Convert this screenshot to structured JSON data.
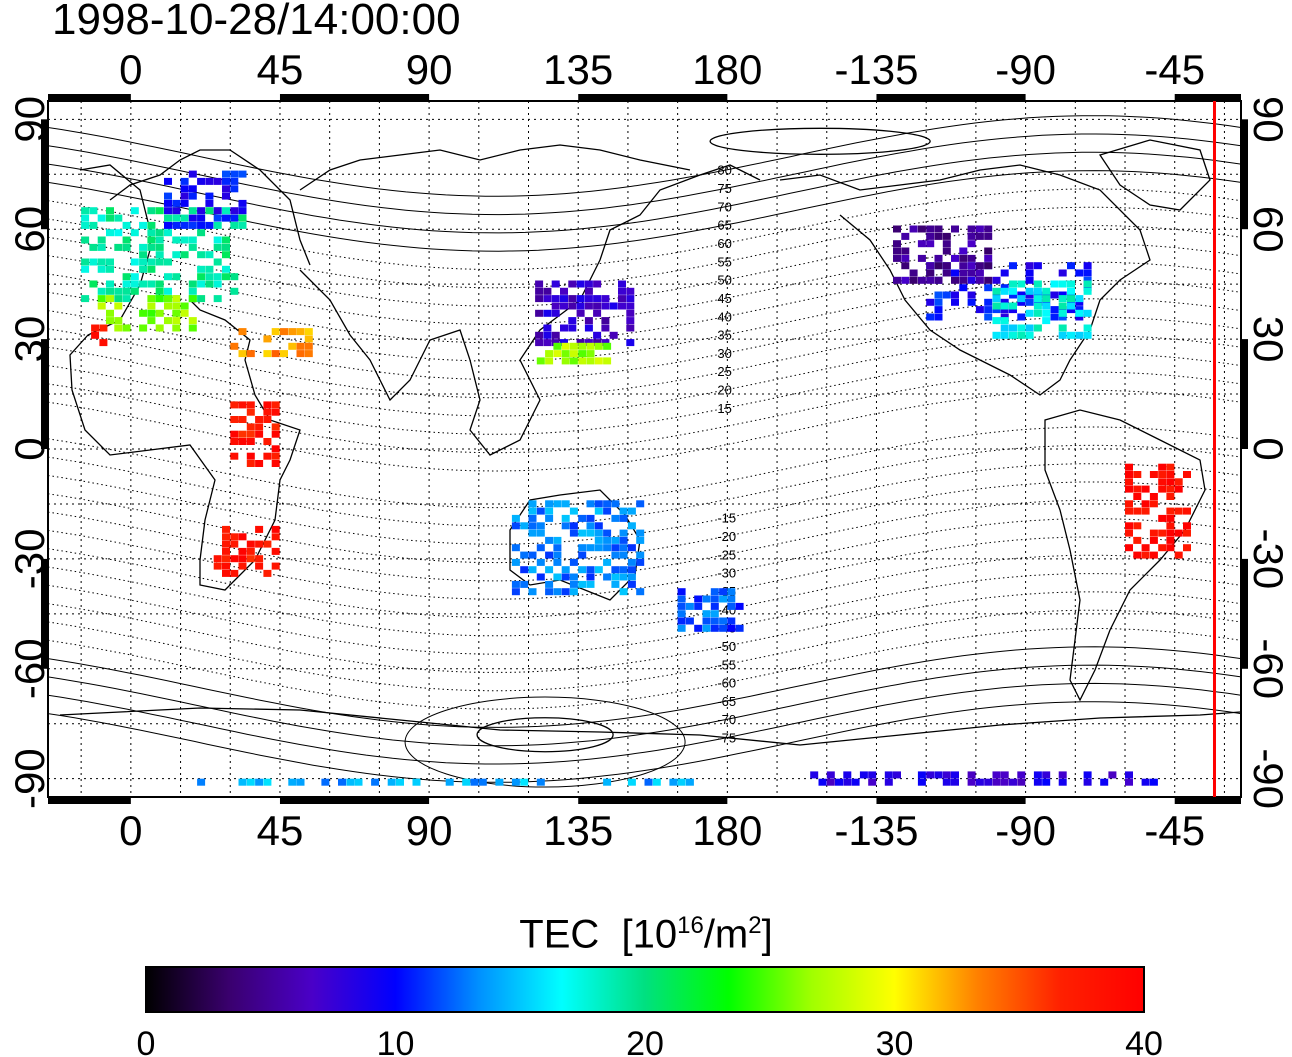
{
  "timestamp": "1998-10-28/14:00:00",
  "map": {
    "x_ticks_top": [
      "0",
      "45",
      "90",
      "135",
      "180",
      "-135",
      "-90",
      "-45"
    ],
    "x_ticks_bottom": [
      "0",
      "45",
      "90",
      "135",
      "180",
      "-135",
      "-90",
      "-45"
    ],
    "y_ticks_left": [
      "90",
      "60",
      "30",
      "0",
      "-30",
      "-60",
      "-90"
    ],
    "y_ticks_right": [
      "90",
      "60",
      "30",
      "0",
      "-30",
      "-60",
      "-90"
    ],
    "lon_tick_values": [
      0,
      45,
      90,
      135,
      180,
      225,
      270,
      315
    ],
    "lat_tick_values": [
      90,
      60,
      30,
      0,
      -30,
      -60,
      -90
    ],
    "lon_range": [
      -25,
      335
    ],
    "lat_range": [
      -95,
      95
    ],
    "grid": "dotted, 15 degree",
    "contour_labels_north": [
      "80",
      "75",
      "70",
      "65",
      "60",
      "55",
      "50",
      "45",
      "40",
      "35",
      "30",
      "25",
      "20",
      "15"
    ],
    "contour_labels_south": [
      "-15",
      "-20",
      "-25",
      "-30",
      "-35",
      "-40",
      "-45",
      "-50",
      "-55",
      "-60",
      "-65",
      "-70",
      "-75"
    ],
    "terminator_color": "#ff0000",
    "terminator_lon": 327
  },
  "colorbar": {
    "title": "TEC",
    "unit_prefix": "[10",
    "unit_exp": "16",
    "unit_mid": "/m",
    "unit_exp2": "2",
    "unit_suffix": "]",
    "ticks": [
      "0",
      "10",
      "20",
      "30",
      "40"
    ],
    "range": [
      0,
      40
    ],
    "colors": [
      "#000000",
      "#3a006e",
      "#4a00c8",
      "#0000ff",
      "#0090ff",
      "#00ffff",
      "#00e080",
      "#00ff00",
      "#a0ff00",
      "#ffff00",
      "#ff8000",
      "#ff2000",
      "#ff0000"
    ]
  },
  "chart_data": {
    "type": "heatmap",
    "title": "1998-10-28/14:00:00",
    "colorbar_label": "TEC [10^16/m^2]",
    "value_range": [
      0,
      40
    ],
    "lon_range": [
      -25,
      335
    ],
    "lat_range": [
      -95,
      95
    ],
    "regions": [
      {
        "lon": [
          -15,
          35
        ],
        "lat": [
          40,
          65
        ],
        "value": 19
      },
      {
        "lon": [
          10,
          35
        ],
        "lat": [
          60,
          75
        ],
        "value": 10
      },
      {
        "lon": [
          -10,
          20
        ],
        "lat": [
          32,
          42
        ],
        "value": 26
      },
      {
        "lon": [
          -12,
          -8
        ],
        "lat": [
          28,
          33
        ],
        "value": 38
      },
      {
        "lon": [
          30,
          55
        ],
        "lat": [
          25,
          33
        ],
        "value": 33
      },
      {
        "lon": [
          25,
          45
        ],
        "lat": [
          -35,
          -22
        ],
        "value": 38
      },
      {
        "lon": [
          30,
          45
        ],
        "lat": [
          -5,
          12
        ],
        "value": 38
      },
      {
        "lon": [
          122,
          150
        ],
        "lat": [
          28,
          45
        ],
        "value": 7
      },
      {
        "lon": [
          120,
          145
        ],
        "lat": [
          23,
          28
        ],
        "value": 27
      },
      {
        "lon": [
          240,
          290
        ],
        "lat": [
          35,
          50
        ],
        "value": 10
      },
      {
        "lon": [
          230,
          260
        ],
        "lat": [
          45,
          60
        ],
        "value": 5
      },
      {
        "lon": [
          260,
          290
        ],
        "lat": [
          30,
          45
        ],
        "value": 17
      },
      {
        "lon": [
          300,
          320
        ],
        "lat": [
          -30,
          -5
        ],
        "value": 39
      },
      {
        "lon": [
          115,
          155
        ],
        "lat": [
          -40,
          -15
        ],
        "value": 13
      },
      {
        "lon": [
          165,
          185
        ],
        "lat": [
          -50,
          -38
        ],
        "value": 12
      },
      {
        "lon": [
          20,
          170
        ],
        "lat": [
          -92,
          -90
        ],
        "value": 14
      },
      {
        "lon": [
          205,
          310
        ],
        "lat": [
          -92,
          -89
        ],
        "value": 8
      }
    ]
  }
}
